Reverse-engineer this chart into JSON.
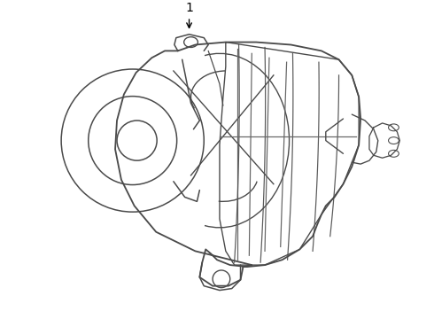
{
  "background_color": "#ffffff",
  "line_color": "#4a4a4a",
  "line_width": 1.1,
  "label_text": "1",
  "fig_width": 4.9,
  "fig_height": 3.6,
  "dpi": 100
}
